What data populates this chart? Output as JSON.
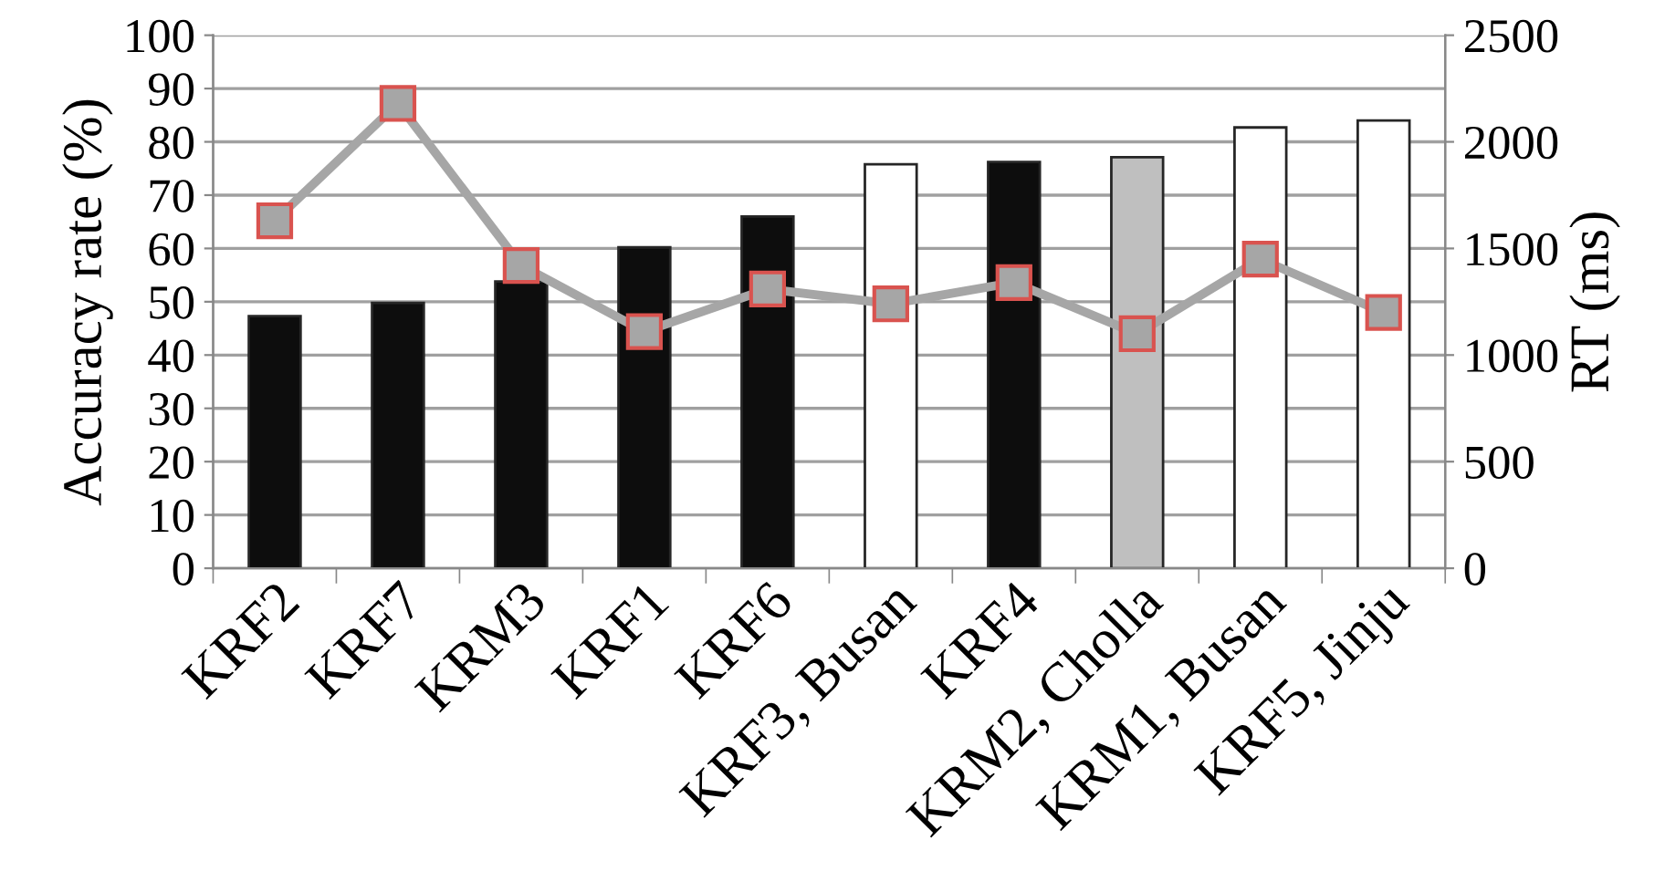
{
  "chart_data": {
    "type": "bar",
    "ylabel": "Accuracy rate (%)",
    "y2label": "RT (ms)",
    "categories": [
      "KRF2",
      "KRF7",
      "KRM3",
      "KRF1",
      "KRF6",
      "KRF3, Busan",
      "KRF4",
      "KRM2, Cholla",
      "KRM1, Busan",
      "KRF5, Jinju"
    ],
    "series": [
      {
        "values": [
          47.3,
          49.8,
          53.8,
          60.2,
          66,
          75.8,
          76.2,
          77.1,
          82.7,
          84
        ],
        "colors": [
          "#0d0d0d",
          "#0d0d0d",
          "#0d0d0d",
          "#0d0d0d",
          "#0d0d0d",
          "#ffffff",
          "#0d0d0d",
          "#bfbfbf",
          "#ffffff",
          "#ffffff"
        ]
      },
      {
        "type": "line",
        "axis": "y2",
        "color": "#a6a6a6",
        "marker": "square",
        "values": [
          1630,
          2180,
          1420,
          1110,
          1310,
          1240,
          1340,
          1100,
          1450,
          1200
        ]
      }
    ],
    "ylim": [
      0,
      100
    ],
    "yticks": [
      0,
      10,
      20,
      30,
      40,
      50,
      60,
      70,
      80,
      90,
      100
    ],
    "y2lim": [
      0,
      2500
    ],
    "y2ticks": [
      0,
      500,
      1000,
      1500,
      2000,
      2500
    ],
    "grid": "y"
  }
}
